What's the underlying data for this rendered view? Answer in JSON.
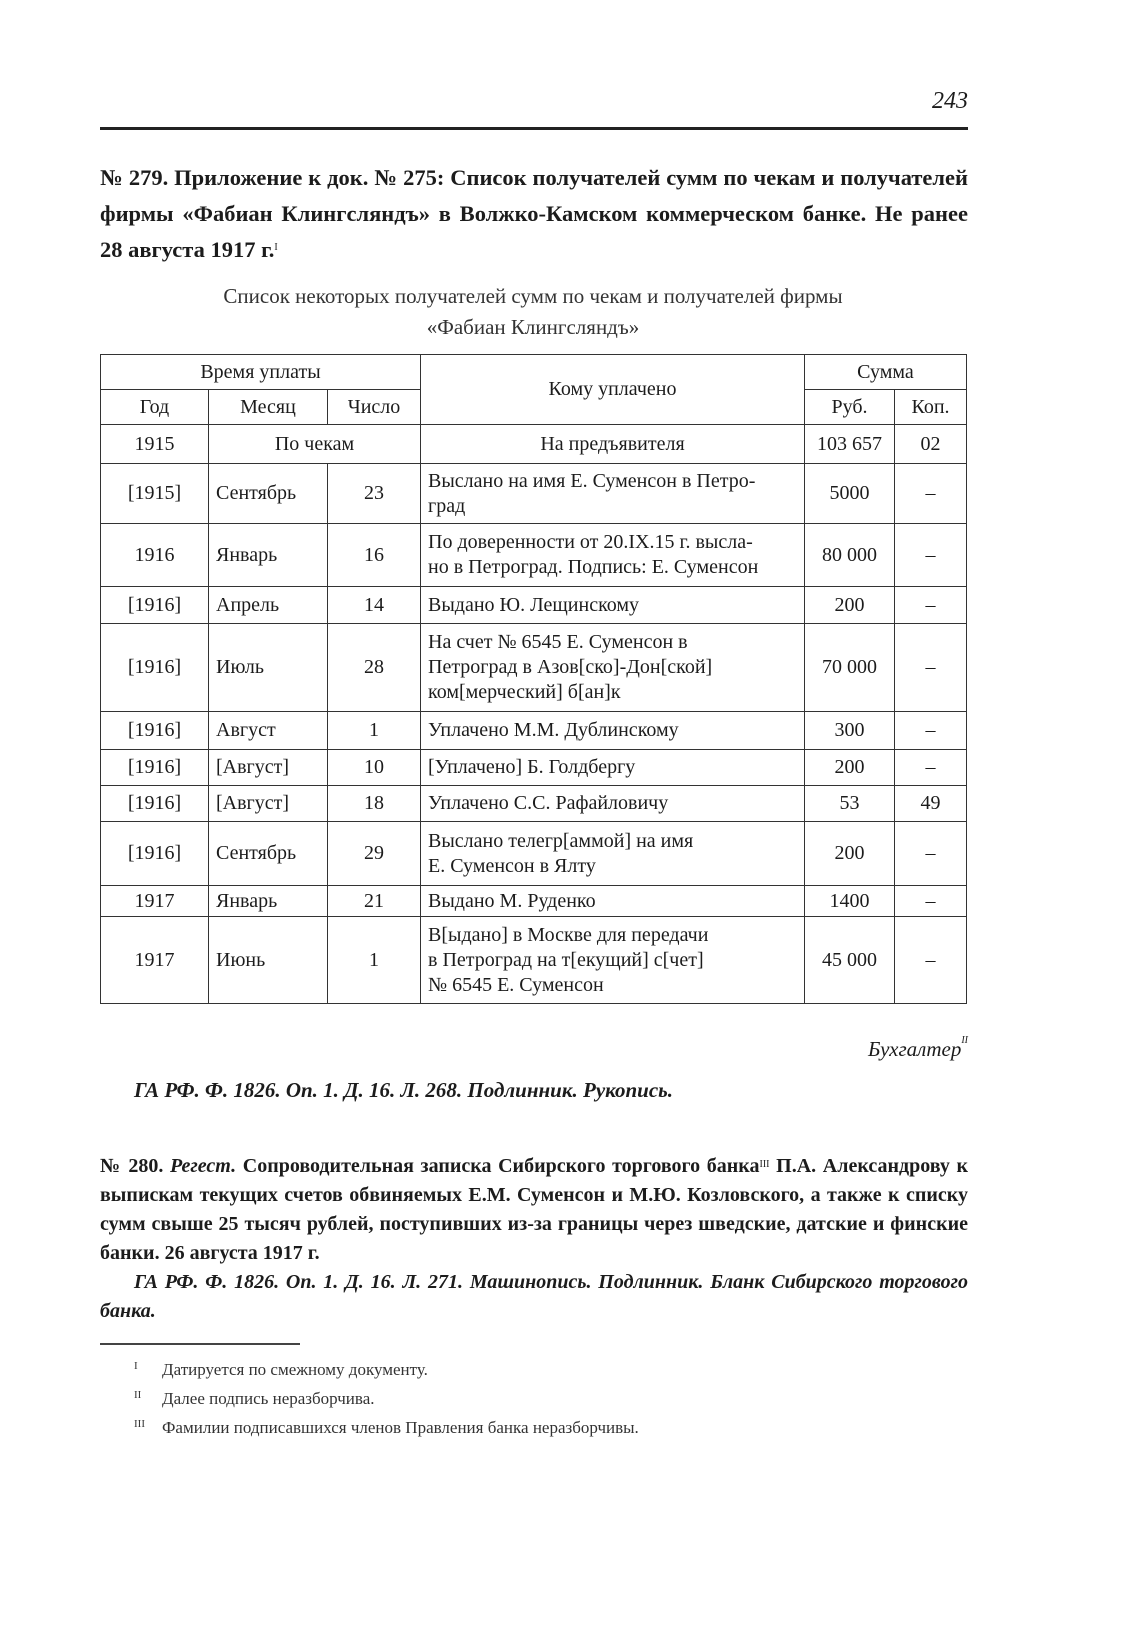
{
  "page_number": "243",
  "doc279": {
    "title": "№ 279. Приложение к док. № 275: Список получателей сумм по чекам и получателей фирмы «Фабиан Клингсляндъ» в Волжко-Камском коммерческом банке. Не ранее 28 августа 1917 г.",
    "title_footnote_mark": "I",
    "caption": "Список некоторых получателей сумм по чекам и получателей фирмы\n«Фабиан Клингсляндъ»",
    "table": {
      "headers": {
        "time_of_payment": "Время уплаты",
        "year": "Год",
        "month": "Месяц",
        "day": "Число",
        "paid_to": "Кому уплачено",
        "sum": "Сумма",
        "rub": "Руб.",
        "kop": "Коп."
      },
      "first_row": {
        "year": "1915",
        "by_cheques": "По чекам",
        "paid_to": "На предъявителя",
        "rub": "103 657",
        "kop": "02"
      },
      "rows": [
        {
          "year": "[1915]",
          "month": "Сентябрь",
          "day": "23",
          "paid_to": "Выслано на имя Е. Суменсон в Петро-\nград",
          "rub": "5000",
          "kop": "–"
        },
        {
          "year": "1916",
          "month": "Январь",
          "day": "16",
          "paid_to": "По доверенности от 20.IX.15 г. высла-\nно в Петроград. Подпись: Е. Суменсон",
          "rub": "80 000",
          "kop": "–"
        },
        {
          "year": "[1916]",
          "month": "Апрель",
          "day": "14",
          "paid_to": "Выдано Ю. Лещинскому",
          "rub": "200",
          "kop": "–"
        },
        {
          "year": "[1916]",
          "month": "Июль",
          "day": "28",
          "paid_to": "На счет № 6545 Е. Суменсон в\nПетроград в Азов[ско]-Дон[ской]\nком[мерческий] б[ан]к",
          "rub": "70 000",
          "kop": "–"
        },
        {
          "year": "[1916]",
          "month": "Август",
          "day": "1",
          "paid_to": "Уплачено М.М. Дублинскому",
          "rub": "300",
          "kop": "–"
        },
        {
          "year": "[1916]",
          "month": "[Август]",
          "day": "10",
          "paid_to": "[Уплачено] Б. Голдбергу",
          "rub": "200",
          "kop": "–"
        },
        {
          "year": "[1916]",
          "month": "[Август]",
          "day": "18",
          "paid_to": "Уплачено С.С. Рафайловичу",
          "rub": "53",
          "kop": "49"
        },
        {
          "year": "[1916]",
          "month": "Сентябрь",
          "day": "29",
          "paid_to": "Выслано телегр[аммой] на имя\nЕ. Суменсон в Ялту",
          "rub": "200",
          "kop": "–"
        },
        {
          "year": "1917",
          "month": "Январь",
          "day": "21",
          "paid_to": "Выдано М. Руденко",
          "rub": "1400",
          "kop": "–"
        },
        {
          "year": "1917",
          "month": "Июнь",
          "day": "1",
          "paid_to": "В[ыдано] в Москве для передачи\nв Петроград на т[екущий] с[чет]\n№ 6545 Е. Суменсон",
          "rub": "45 000",
          "kop": "–"
        }
      ]
    },
    "signature": "Бухгалтер",
    "signature_footnote_mark": "II",
    "archive_ref": "ГА РФ. Ф. 1826. Оп. 1. Д. 16. Л. 268. Подлинник. Рукопись."
  },
  "doc280": {
    "number": "№ 280.",
    "kind": "Регест.",
    "text_a": "Сопроводительная записка Сибирского торгового банка",
    "footnote_mark": "III",
    "text_b": "П.А. Александрову к выпискам текущих счетов обвиняемых Е.М. Суменсон и М.Ю. Козловского, а также к списку сумм свыше 25 тысяч рублей, поступивших из-за границы через шведские, датские и финские банки. 26 августа 1917 г.",
    "archive_ref": "ГА РФ. Ф. 1826. Оп. 1. Д. 16. Л. 271. Машинопись. Подлинник. Бланк Сибирского торгового банка."
  },
  "footnotes": [
    {
      "mark": "I",
      "text": "Датируется по смежному документу."
    },
    {
      "mark": "II",
      "text": "Далее подпись неразборчива."
    },
    {
      "mark": "III",
      "text": "Фамилии подписавшихся членов Правления банка неразборчивы."
    }
  ]
}
